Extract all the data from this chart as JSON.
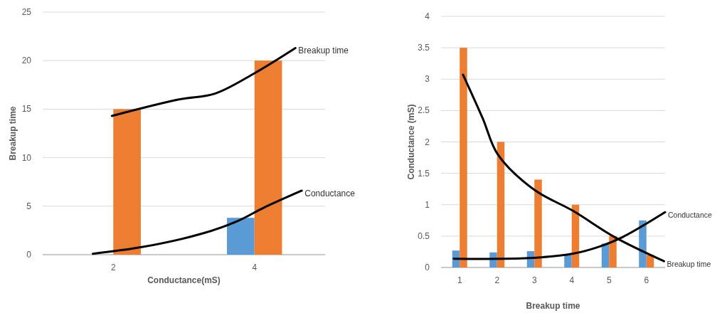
{
  "chart_data": [
    {
      "type": "bar",
      "xlabel": "Conductance(mS)",
      "ylabel": "Breakup time",
      "xlim": [
        1,
        5
      ],
      "xticks": [
        2,
        4
      ],
      "ylim": [
        0,
        25
      ],
      "yticks": [
        0,
        5,
        10,
        15,
        20,
        25
      ],
      "grid": "y",
      "x": [
        2,
        4
      ],
      "series": [
        {
          "color": "#5b9bd5",
          "values": [
            0,
            3.8
          ]
        },
        {
          "color": "#ed7d31",
          "values": [
            15,
            20
          ]
        },
        {
          "type": "line",
          "name": "Breakup time",
          "color": "#000000",
          "x": [
            1.98,
            2.93,
            3.44,
            4.0,
            4.58
          ],
          "values": [
            14.3,
            16.0,
            16.6,
            18.7,
            21.3
          ]
        },
        {
          "type": "line",
          "name": "Conductance",
          "color": "#000000",
          "x": [
            1.71,
            2.42,
            3.27,
            3.77,
            4.12,
            4.67
          ],
          "values": [
            0.1,
            0.8,
            2.2,
            3.5,
            4.8,
            6.6
          ]
        }
      ]
    },
    {
      "type": "bar",
      "xlabel": "Breakup time",
      "ylabel": "Conductance (mS)",
      "xlim": [
        0.5,
        6.5
      ],
      "xticks": [
        1,
        2,
        3,
        4,
        5,
        6
      ],
      "ylim": [
        0,
        4
      ],
      "yticks": [
        0,
        0.5,
        1,
        1.5,
        2,
        2.5,
        3,
        3.5,
        4
      ],
      "grid": "y",
      "x": [
        1,
        2,
        3,
        4,
        5,
        6
      ],
      "series": [
        {
          "color": "#5b9bd5",
          "values": [
            0.27,
            0.24,
            0.26,
            0.2,
            0.38,
            0.75
          ]
        },
        {
          "color": "#ed7d31",
          "values": [
            3.5,
            2.0,
            1.4,
            1.0,
            0.5,
            0.2
          ]
        },
        {
          "type": "line",
          "name": "Breakup time",
          "color": "#000000",
          "x": [
            1.09,
            1.62,
            2.02,
            2.99,
            4.04,
            5.16,
            6.47
          ],
          "values": [
            3.07,
            2.37,
            1.8,
            1.24,
            0.9,
            0.48,
            0.1
          ]
        },
        {
          "type": "line",
          "name": "Conductance",
          "color": "#000000",
          "x": [
            0.84,
            2.86,
            4.04,
            4.73,
            5.35,
            6.5
          ],
          "values": [
            0.14,
            0.15,
            0.22,
            0.33,
            0.48,
            0.88
          ]
        }
      ]
    }
  ]
}
